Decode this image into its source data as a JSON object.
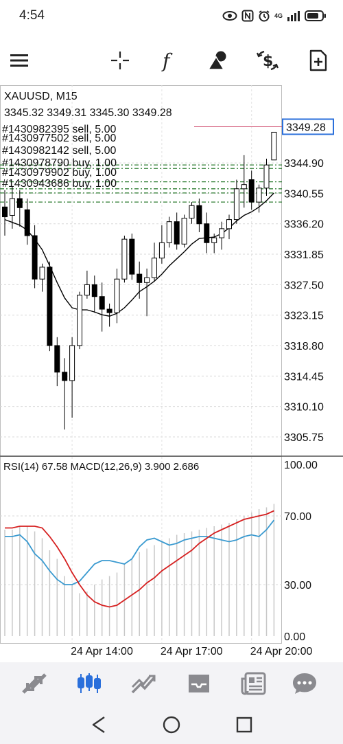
{
  "status": {
    "time": "4:54",
    "network": "4G",
    "icons": [
      "eye-icon",
      "nfc-icon",
      "alarm-icon",
      "signal-icon",
      "battery-icon"
    ]
  },
  "toolbar": {
    "icons": [
      "menu-icon",
      "crosshair-icon",
      "function-icon",
      "objects-icon",
      "symbol-icon",
      "new-order-icon"
    ]
  },
  "chart": {
    "symbol_label": "XAUUSD, M15",
    "ohlc": "3345.32 3349.31 3345.30 3349.28",
    "current_price": "3349.28",
    "orders": [
      "#1430982395 sell, 5.00",
      "#1430977502 sell, 5.00",
      "#1430982142 sell, 5.00",
      "#1430978790 buy, 1.00",
      "#1430979902 buy, 1.00",
      "#1430943686 buy, 1.00"
    ],
    "indicator_label": "RSI(14) 67.58 MACD(12,26,9) 3.900 2.686",
    "colors": {
      "up": "#ffffff",
      "down": "#000000",
      "ma": "#000000",
      "rsi": "#3a9ad0",
      "macd_signal": "#d62020",
      "macd_hist": "#c8c8c8",
      "sell_line": "#2e7d32",
      "buy_line": "#2e7d32",
      "price_line": "#d05070",
      "accent": "#2a6fdb"
    }
  },
  "chart_data": [
    {
      "type": "candlestick",
      "title": "XAUUSD, M15",
      "ylim": [
        3303.0,
        3356.0
      ],
      "y_ticks": [
        "3349.28",
        "3344.90",
        "3340.55",
        "3336.20",
        "3331.85",
        "3327.50",
        "3323.15",
        "3318.80",
        "3314.45",
        "3310.10",
        "3305.75"
      ],
      "x_ticks": [
        "24 Apr 14:00",
        "24 Apr 17:00",
        "24 Apr 20:00"
      ],
      "candles": [
        {
          "o": 3338.6,
          "h": 3341.0,
          "l": 3334.5,
          "c": 3337.2
        },
        {
          "o": 3337.4,
          "h": 3341.5,
          "l": 3335.5,
          "c": 3339.8
        },
        {
          "o": 3339.8,
          "h": 3341.0,
          "l": 3335.8,
          "c": 3338.5
        },
        {
          "o": 3338.2,
          "h": 3339.8,
          "l": 3333.2,
          "c": 3334.5
        },
        {
          "o": 3334.5,
          "h": 3336.0,
          "l": 3327.0,
          "c": 3328.3
        },
        {
          "o": 3328.3,
          "h": 3330.5,
          "l": 3326.5,
          "c": 3330.0
        },
        {
          "o": 3330.0,
          "h": 3330.8,
          "l": 3318.0,
          "c": 3318.8
        },
        {
          "o": 3318.8,
          "h": 3320.0,
          "l": 3313.0,
          "c": 3315.0
        },
        {
          "o": 3315.0,
          "h": 3317.0,
          "l": 3306.8,
          "c": 3313.8
        },
        {
          "o": 3313.8,
          "h": 3320.0,
          "l": 3308.5,
          "c": 3318.8
        },
        {
          "o": 3318.8,
          "h": 3326.5,
          "l": 3318.3,
          "c": 3326.0
        },
        {
          "o": 3326.0,
          "h": 3329.5,
          "l": 3325.5,
          "c": 3327.5
        },
        {
          "o": 3327.5,
          "h": 3328.8,
          "l": 3323.5,
          "c": 3325.8
        },
        {
          "o": 3325.8,
          "h": 3327.8,
          "l": 3320.8,
          "c": 3324.0
        },
        {
          "o": 3324.0,
          "h": 3324.8,
          "l": 3321.5,
          "c": 3323.5
        },
        {
          "o": 3323.5,
          "h": 3329.8,
          "l": 3322.0,
          "c": 3328.3
        },
        {
          "o": 3328.3,
          "h": 3334.5,
          "l": 3327.8,
          "c": 3334.0
        },
        {
          "o": 3334.0,
          "h": 3334.8,
          "l": 3328.2,
          "c": 3329.0
        },
        {
          "o": 3329.0,
          "h": 3330.8,
          "l": 3325.5,
          "c": 3327.8
        },
        {
          "o": 3327.8,
          "h": 3329.8,
          "l": 3323.0,
          "c": 3328.5
        },
        {
          "o": 3328.5,
          "h": 3333.5,
          "l": 3328.0,
          "c": 3331.3
        },
        {
          "o": 3331.3,
          "h": 3336.0,
          "l": 3330.5,
          "c": 3333.5
        },
        {
          "o": 3333.5,
          "h": 3337.2,
          "l": 3332.8,
          "c": 3336.5
        },
        {
          "o": 3336.5,
          "h": 3337.8,
          "l": 3332.5,
          "c": 3333.3
        },
        {
          "o": 3333.3,
          "h": 3337.5,
          "l": 3332.8,
          "c": 3337.0
        },
        {
          "o": 3337.0,
          "h": 3339.3,
          "l": 3336.2,
          "c": 3338.8
        },
        {
          "o": 3338.8,
          "h": 3339.8,
          "l": 3335.0,
          "c": 3336.2
        },
        {
          "o": 3336.2,
          "h": 3337.8,
          "l": 3332.0,
          "c": 3333.5
        },
        {
          "o": 3333.5,
          "h": 3334.8,
          "l": 3332.0,
          "c": 3334.2
        },
        {
          "o": 3334.2,
          "h": 3336.5,
          "l": 3332.5,
          "c": 3335.5
        },
        {
          "o": 3335.5,
          "h": 3337.5,
          "l": 3334.0,
          "c": 3336.8
        },
        {
          "o": 3336.8,
          "h": 3342.5,
          "l": 3336.2,
          "c": 3341.2
        },
        {
          "o": 3341.2,
          "h": 3346.0,
          "l": 3338.5,
          "c": 3341.8
        },
        {
          "o": 3342.5,
          "h": 3343.8,
          "l": 3338.2,
          "c": 3339.3
        },
        {
          "o": 3339.3,
          "h": 3341.8,
          "l": 3337.8,
          "c": 3341.3
        },
        {
          "o": 3341.3,
          "h": 3345.5,
          "l": 3340.2,
          "c": 3344.6
        },
        {
          "o": 3345.32,
          "h": 3349.31,
          "l": 3345.3,
          "c": 3349.28
        }
      ],
      "moving_average": [
        3336.8,
        3336.4,
        3336.0,
        3335.3,
        3334.0,
        3332.5,
        3330.2,
        3327.8,
        3325.6,
        3324.2,
        3323.9,
        3323.9,
        3323.6,
        3323.2,
        3323.0,
        3323.4,
        3324.2,
        3325.3,
        3326.5,
        3327.2,
        3328.0,
        3329.0,
        3330.2,
        3331.2,
        3332.2,
        3333.3,
        3334.1,
        3334.2,
        3334.3,
        3334.8,
        3335.6,
        3336.6,
        3337.4,
        3337.9,
        3338.6,
        3339.5,
        3340.6
      ],
      "orders": [
        {
          "label": "#1430982395 sell, 5.00",
          "price": 3344.1
        },
        {
          "label": "#1430977502 sell, 5.00",
          "price": 3344.6
        },
        {
          "label": "#1430982142 sell, 5.00",
          "price": 3342.2
        },
        {
          "label": "#1430978790 buy, 1.00",
          "price": 3341.2
        },
        {
          "label": "#1430979902 buy, 1.00",
          "price": 3340.6
        },
        {
          "label": "#1430943686 buy, 1.00",
          "price": 3339.3
        }
      ]
    },
    {
      "type": "line",
      "title": "RSI(14) 67.58 MACD(12,26,9) 3.900 2.686",
      "ylim": [
        0,
        100
      ],
      "y_ticks": [
        "100.00",
        "70.00",
        "30.00",
        "0.00"
      ],
      "series": [
        {
          "name": "RSI(14)",
          "values": [
            58,
            58,
            59,
            55,
            48,
            44,
            38,
            33,
            30,
            30,
            32,
            37,
            42,
            44,
            44,
            43,
            42,
            45,
            52,
            56,
            57,
            55,
            53,
            54,
            56,
            57,
            58,
            58,
            57,
            56,
            55,
            56,
            58,
            59,
            58,
            62,
            67.58
          ]
        },
        {
          "name": "MACD",
          "values": [
            63,
            63,
            64,
            64,
            64,
            63,
            58,
            52,
            45,
            37,
            30,
            24,
            20,
            18,
            17,
            18,
            21,
            24,
            27,
            31,
            34,
            38,
            41,
            44,
            47,
            50,
            54,
            57,
            60,
            62,
            64,
            66,
            68,
            69,
            70,
            71,
            73
          ]
        }
      ],
      "histogram": [
        62,
        62,
        64,
        64,
        61,
        57,
        50,
        45,
        35,
        30,
        25,
        26,
        30,
        33,
        35,
        37,
        42,
        45,
        49,
        51,
        53,
        55,
        57,
        59,
        60,
        61,
        62,
        63,
        64,
        65,
        66,
        68,
        70,
        72,
        74,
        75,
        77
      ]
    }
  ],
  "bottom_nav": {
    "items": [
      "quotes-icon",
      "chart-icon",
      "trade-icon",
      "history-icon",
      "news-icon",
      "messages-icon"
    ]
  },
  "system_nav": {
    "items": [
      "back-icon",
      "home-icon",
      "recents-icon"
    ]
  }
}
